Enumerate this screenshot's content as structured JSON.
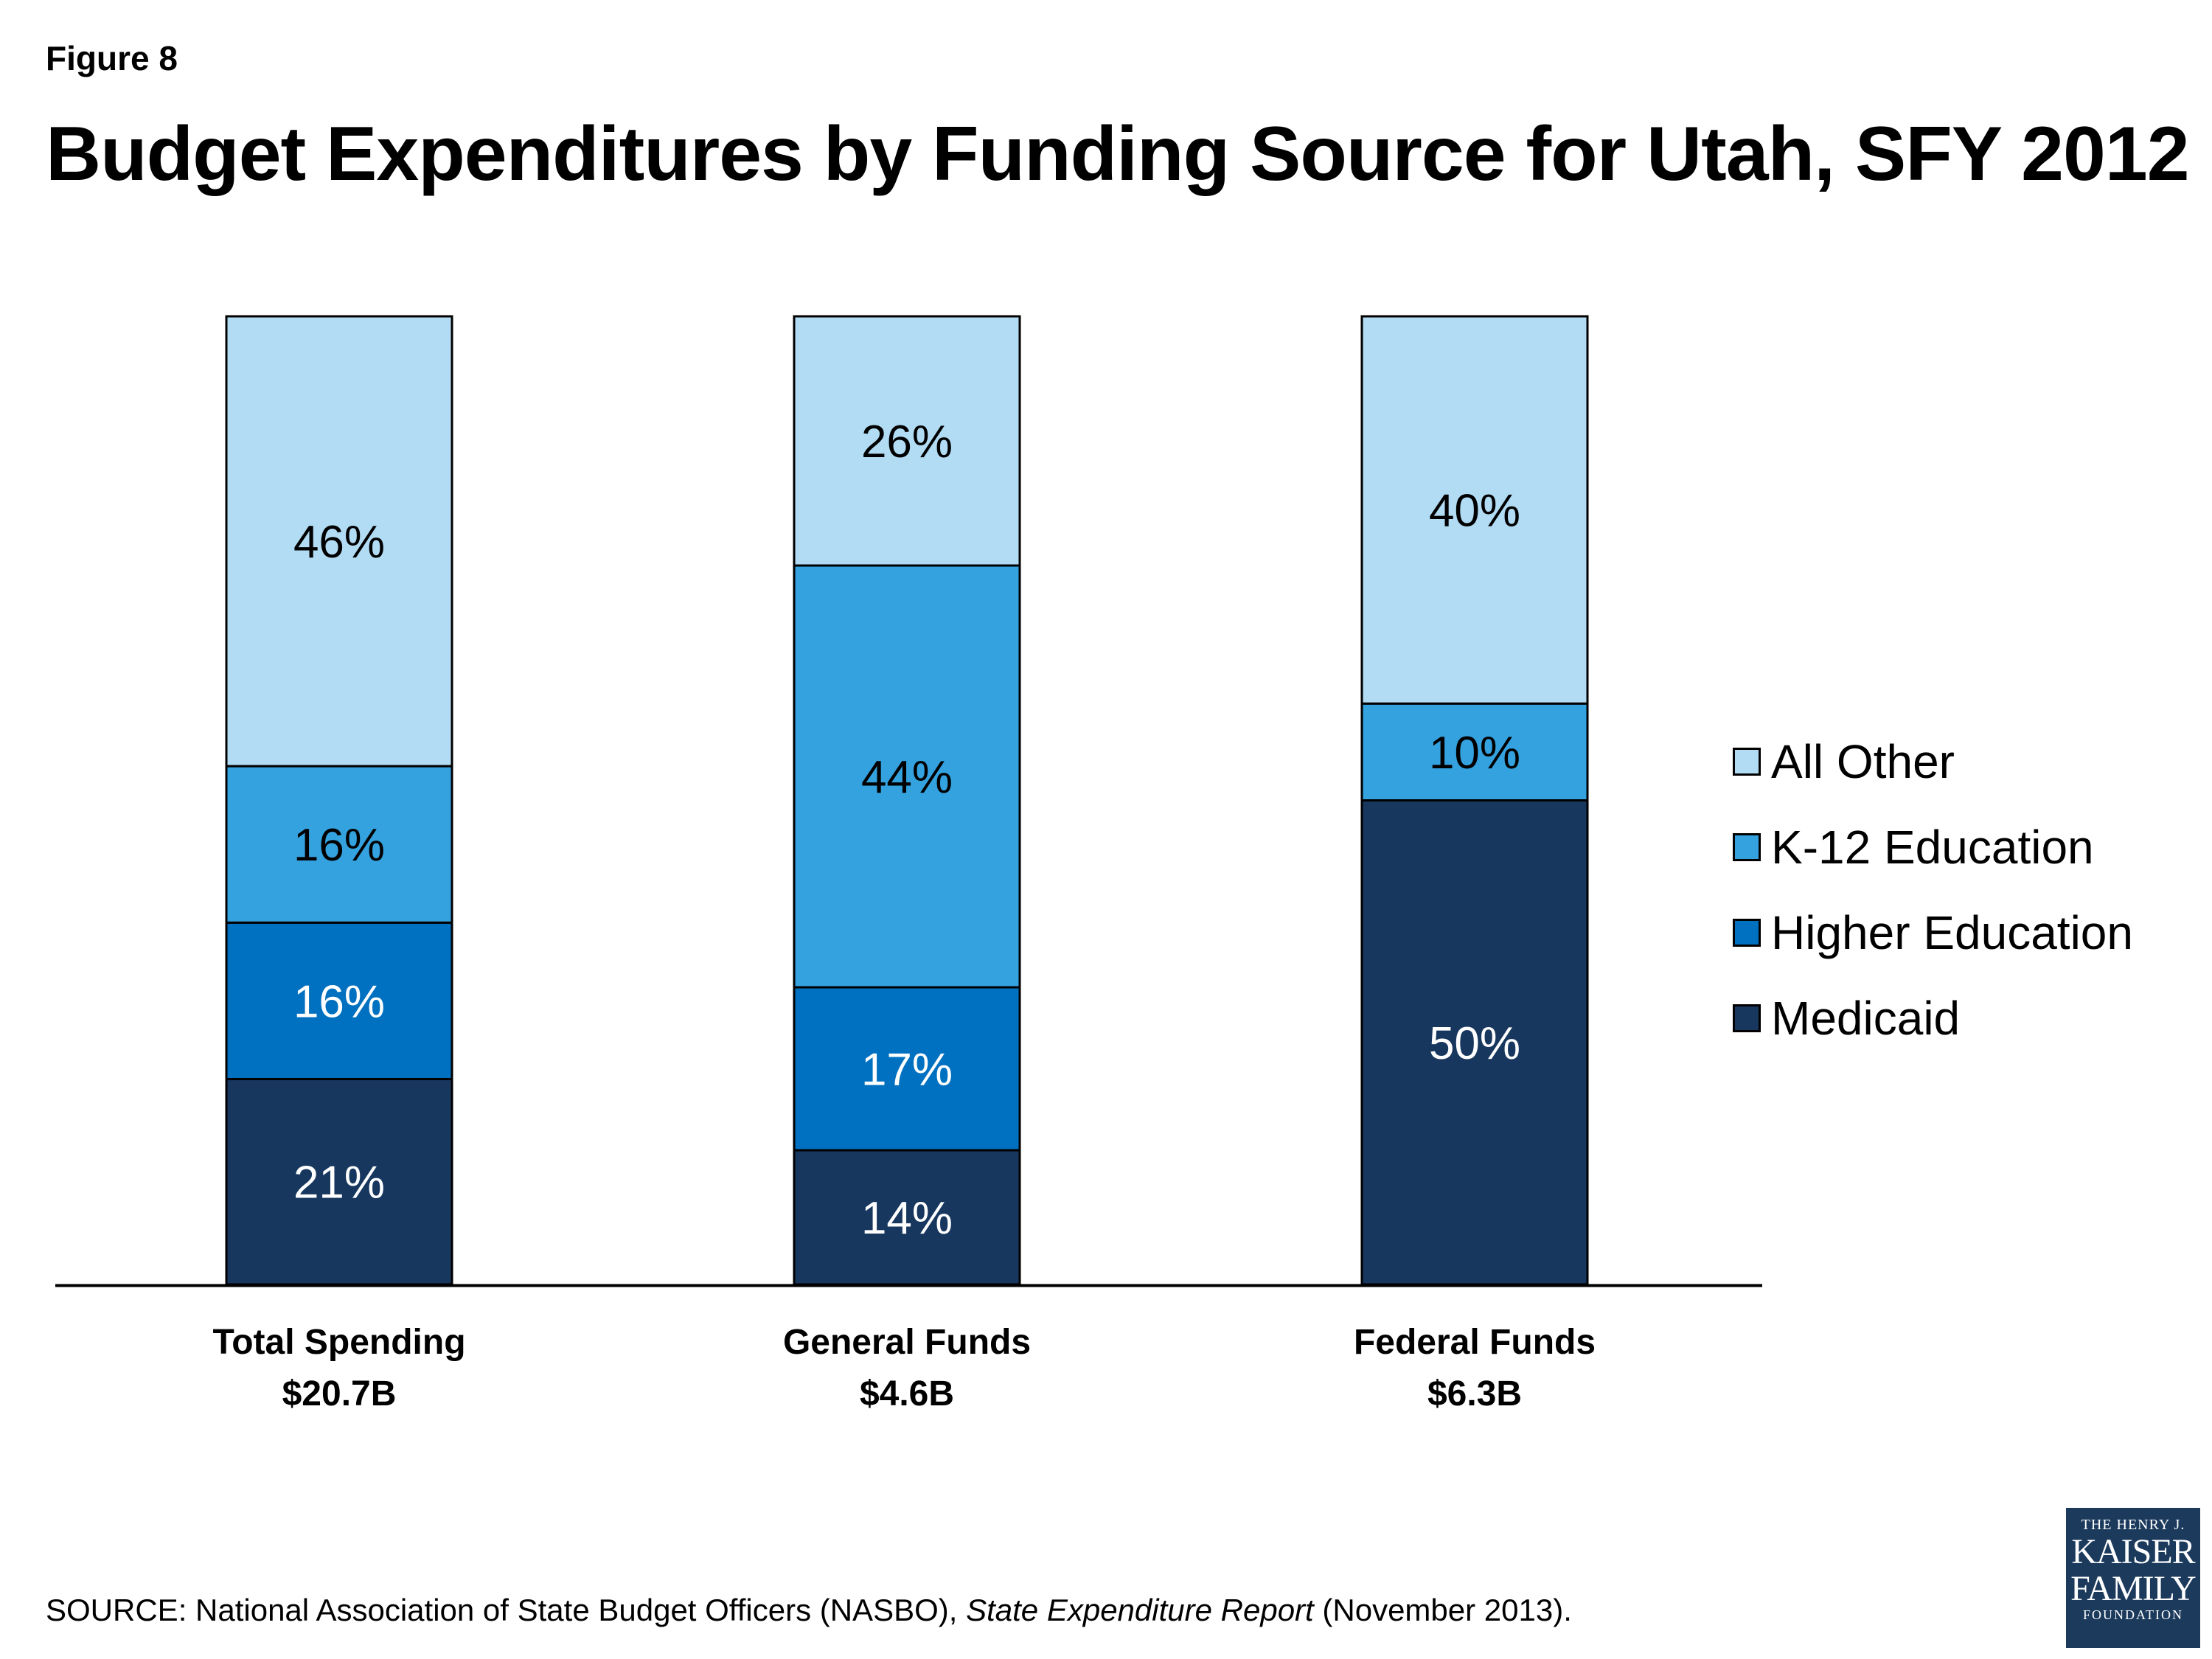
{
  "figure_label": "Figure 8",
  "source": {
    "prefix": "SOURCE: National Association of State Budget Officers (NASBO), ",
    "report": "State Expenditure Report",
    "suffix": " (November 2013)."
  },
  "logo": {
    "line1": "THE HENRY J.",
    "line2": "KAISER",
    "line3": "FAMILY",
    "line4": "FOUNDATION"
  },
  "colors": {
    "medicaid": "#17375e",
    "higher_education": "#0070c0",
    "k12_education": "#35a2e0",
    "all_other": "#b2dcf4"
  },
  "chart_data": {
    "type": "bar",
    "stacked": true,
    "percent_stacked": true,
    "title": "Budget Expenditures by Funding Source for Utah, SFY 2012",
    "categories": [
      {
        "name": "Total Spending",
        "total": "$20.7B"
      },
      {
        "name": "General Funds",
        "total": "$4.6B"
      },
      {
        "name": "Federal Funds",
        "total": "$6.3B"
      }
    ],
    "series": [
      {
        "name": "Medicaid",
        "color": "#17375e",
        "values": [
          21,
          14,
          50
        ],
        "labels": [
          "21%",
          "14%",
          "50%"
        ]
      },
      {
        "name": "Higher Education",
        "color": "#0070c0",
        "values": [
          16,
          17,
          null
        ],
        "labels": [
          "16%",
          "17%",
          ""
        ]
      },
      {
        "name": "K-12 Education",
        "color": "#35a2e0",
        "values": [
          16,
          44,
          10
        ],
        "labels": [
          "16%",
          "44%",
          "10%"
        ]
      },
      {
        "name": "All Other",
        "color": "#b2dcf4",
        "values": [
          46,
          26,
          40
        ],
        "labels": [
          "46%",
          "26%",
          "40%"
        ]
      }
    ],
    "legend": {
      "position": "right",
      "order": [
        "All Other",
        "K-12 Education",
        "Higher Education",
        "Medicaid"
      ]
    },
    "grid": false,
    "ylim": [
      0,
      100
    ]
  }
}
